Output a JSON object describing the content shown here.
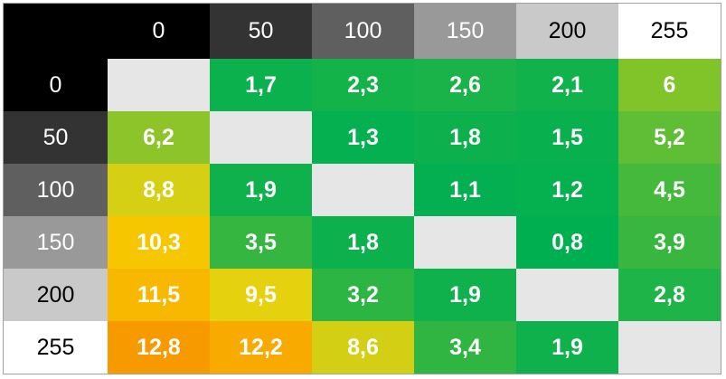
{
  "table": {
    "column_headers": [
      "0",
      "50",
      "100",
      "150",
      "200",
      "255"
    ],
    "row_headers": [
      "0",
      "50",
      "100",
      "150",
      "200",
      "255"
    ],
    "header_colors": [
      "#000000",
      "#333333",
      "#5f5f5f",
      "#999999",
      "#c9c9c9",
      "#ffffff"
    ],
    "empty_color": "#e6e6e6",
    "rows": [
      [
        null,
        "1,7",
        "2,3",
        "2,6",
        "2,1",
        "6"
      ],
      [
        "6,2",
        null,
        "1,3",
        "1,8",
        "1,5",
        "5,2"
      ],
      [
        "8,8",
        "1,9",
        null,
        "1,1",
        "1,2",
        "4,5"
      ],
      [
        "10,3",
        "3,5",
        "1,8",
        null,
        "0,8",
        "3,9"
      ],
      [
        "11,5",
        "9,5",
        "3,2",
        "1,9",
        null,
        "2,8"
      ],
      [
        "12,8",
        "12,2",
        "8,6",
        "3,4",
        "1,9",
        null
      ]
    ],
    "cell_colors": [
      [
        null,
        "#0ab14d",
        "#14b34a",
        "#19b349",
        "#10b24b",
        "#80c42a"
      ],
      [
        "#8cc42a",
        null,
        "#05b050",
        "#0cb14d",
        "#08b04e",
        "#5fbe35"
      ],
      [
        "#d5d014",
        "#0eb14c",
        null,
        "#03af50",
        "#05b04f",
        "#45b93c"
      ],
      [
        "#f6c700",
        "#34b640",
        "#0cb14d",
        null,
        "#00af50",
        "#38b63f"
      ],
      [
        "#f8b800",
        "#e6d10e",
        "#2cb543",
        "#0eb14c",
        null,
        "#1fb447"
      ],
      [
        "#f79a00",
        "#f8aa00",
        "#d2cf15",
        "#30b542",
        "#0eb14c",
        null
      ]
    ]
  }
}
